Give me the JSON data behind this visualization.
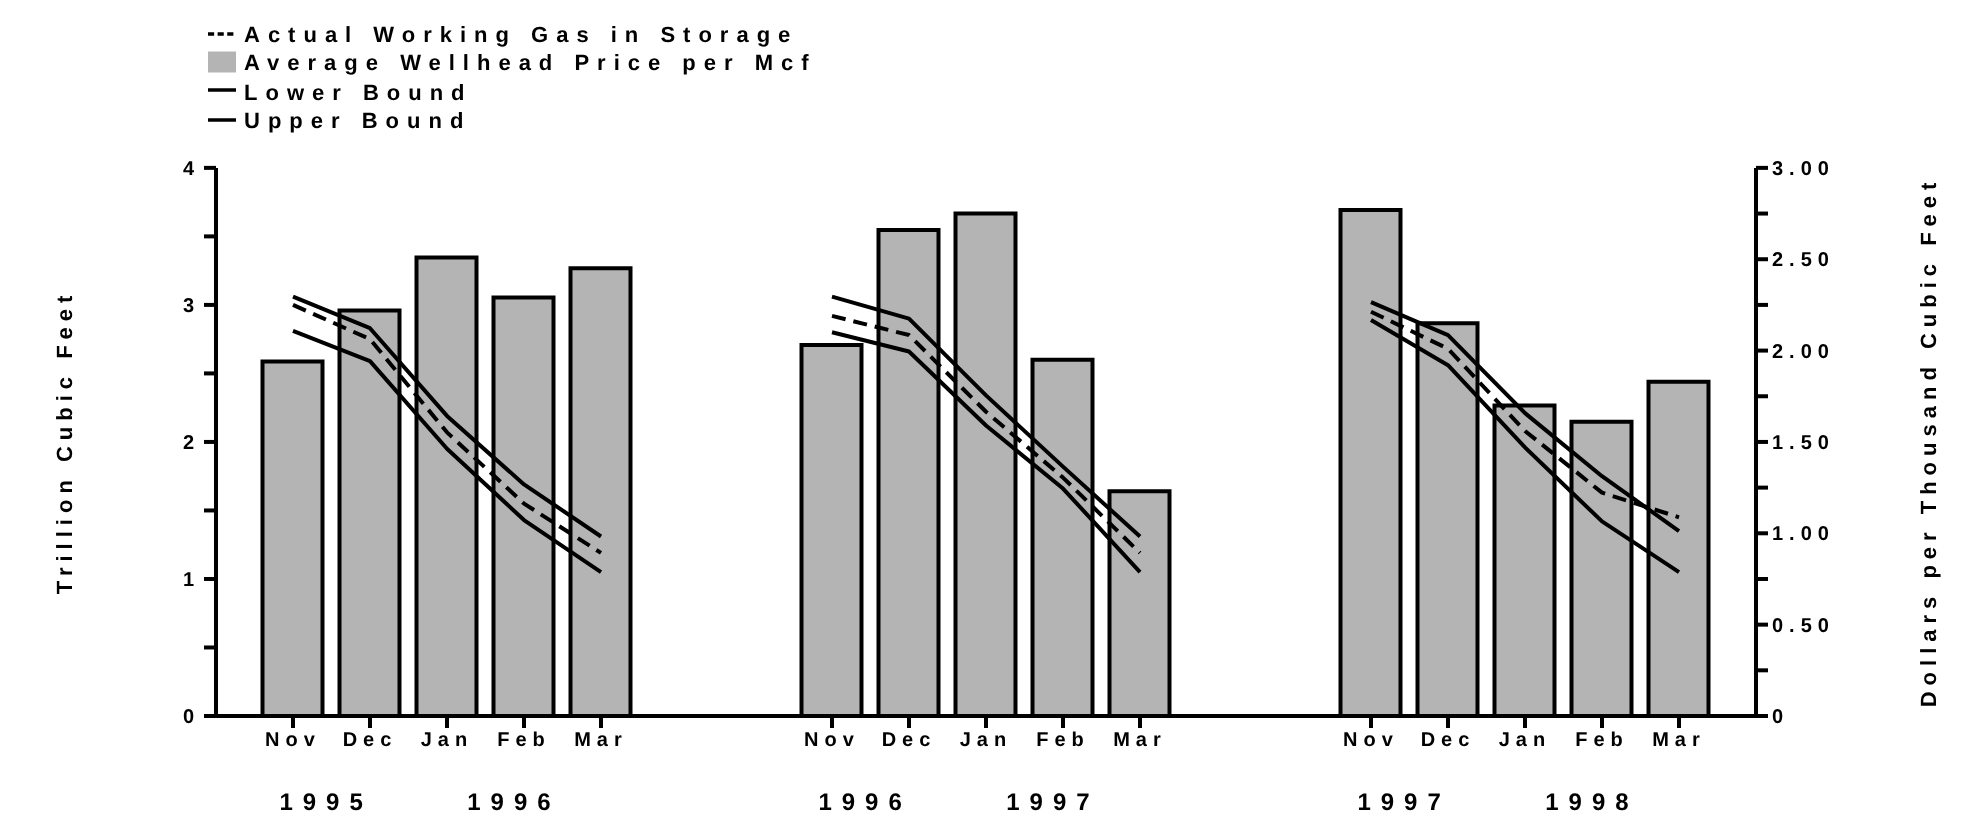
{
  "chart_data": {
    "type": "bar",
    "ylabel": "Trillion Cubic Feet",
    "y2label": "Dollars per Thousand Cubic Feet",
    "categories": [
      "Nov",
      "Dec",
      "Jan",
      "Feb",
      "Mar",
      null,
      null,
      "Nov",
      "Dec",
      "Jan",
      "Feb",
      "Mar",
      null,
      null,
      "Nov",
      "Dec",
      "Jan",
      "Feb",
      "Mar"
    ],
    "series": [
      {
        "name": "Average Wellhead Price per Mcf",
        "axis": "y2",
        "color": "#b4b4b4",
        "values": [
          1.94,
          2.22,
          2.51,
          2.29,
          2.45,
          null,
          null,
          2.03,
          2.66,
          2.75,
          1.95,
          1.23,
          null,
          null,
          2.77,
          2.15,
          1.7,
          1.61,
          1.83
        ]
      },
      {
        "name": "Upper Bound",
        "type": "line",
        "axis": "y",
        "color": "#000000",
        "line_style": "solid",
        "values": [
          3.06,
          2.83,
          2.19,
          1.69,
          1.31,
          null,
          null,
          3.06,
          2.9,
          2.34,
          1.82,
          1.31,
          null,
          null,
          3.02,
          2.78,
          2.21,
          1.75,
          1.35
        ]
      },
      {
        "name": "Actual Working Gas in Storage",
        "type": "line",
        "axis": "y",
        "color": "#000000",
        "line_style": "dashed",
        "values": [
          3.0,
          2.75,
          2.07,
          1.55,
          1.19,
          null,
          null,
          2.92,
          2.78,
          2.22,
          1.74,
          1.19,
          null,
          null,
          2.95,
          2.68,
          2.08,
          1.63,
          1.45
        ]
      },
      {
        "name": "Lower Bound",
        "type": "line",
        "axis": "y",
        "color": "#000000",
        "line_style": "solid",
        "values": [
          2.81,
          2.59,
          1.95,
          1.43,
          1.05,
          null,
          null,
          2.8,
          2.66,
          2.12,
          1.66,
          1.05,
          null,
          null,
          2.89,
          2.56,
          1.96,
          1.42,
          1.05
        ]
      }
    ],
    "ylim": [
      0,
      4
    ],
    "yticks": [
      0,
      {
        "value": 0.5,
        "label": null
      },
      1,
      {
        "value": 1.5,
        "label": null
      },
      2,
      {
        "value": 2.5,
        "label": null
      },
      3,
      {
        "value": 3.5,
        "label": null
      },
      4
    ],
    "y2lim": [
      0,
      3
    ],
    "y2ticks": [
      0,
      {
        "value": 0.25,
        "label": null
      },
      {
        "value": 0.5,
        "label": "0.50"
      },
      {
        "value": 0.75,
        "label": null
      },
      {
        "value": 1,
        "label": "1.00"
      },
      {
        "value": 1.25,
        "label": null
      },
      {
        "value": 1.5,
        "label": "1.50"
      },
      {
        "value": 1.75,
        "label": null
      },
      {
        "value": 2,
        "label": "2.00"
      },
      {
        "value": 2.25,
        "label": null
      },
      {
        "value": 2.5,
        "label": "2.50"
      },
      {
        "value": 2.75,
        "label": null
      },
      {
        "value": 3,
        "label": "3.00"
      }
    ],
    "annotations": [
      "1995",
      "1996",
      "1996",
      "1997",
      "1997",
      "1998"
    ],
    "grid": false,
    "legend": "top left",
    "marker": "none"
  }
}
